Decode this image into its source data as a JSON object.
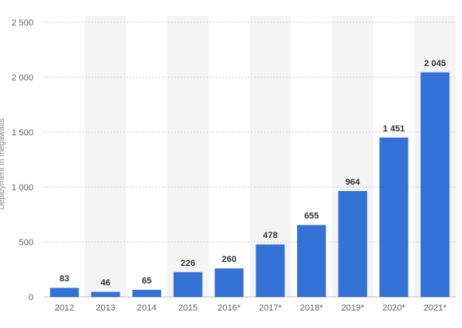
{
  "chart_data": {
    "type": "bar",
    "categories": [
      "2012",
      "2013",
      "2014",
      "2015",
      "2016*",
      "2017*",
      "2018*",
      "2019*",
      "2020*",
      "2021*"
    ],
    "values": [
      83,
      46,
      65,
      226,
      260,
      478,
      655,
      964,
      1451,
      2045
    ],
    "value_labels": [
      "83",
      "46",
      "65",
      "226",
      "260",
      "478",
      "655",
      "964",
      "1 451",
      "2 045"
    ],
    "title": "",
    "xlabel": "",
    "ylabel": "Deployment in megawatts",
    "ylim": [
      0,
      2500
    ],
    "yticks": [
      0,
      500,
      1000,
      1500,
      2000,
      2500
    ],
    "ytick_labels": [
      "0",
      "500",
      "1 000",
      "1 500",
      "2 000",
      "2 500"
    ],
    "grid": true,
    "alternating_column_shading": true,
    "legend": "none"
  },
  "colors": {
    "bar": "#3572d7",
    "band": "#f4f4f4",
    "grid": "#cfcfcf"
  }
}
